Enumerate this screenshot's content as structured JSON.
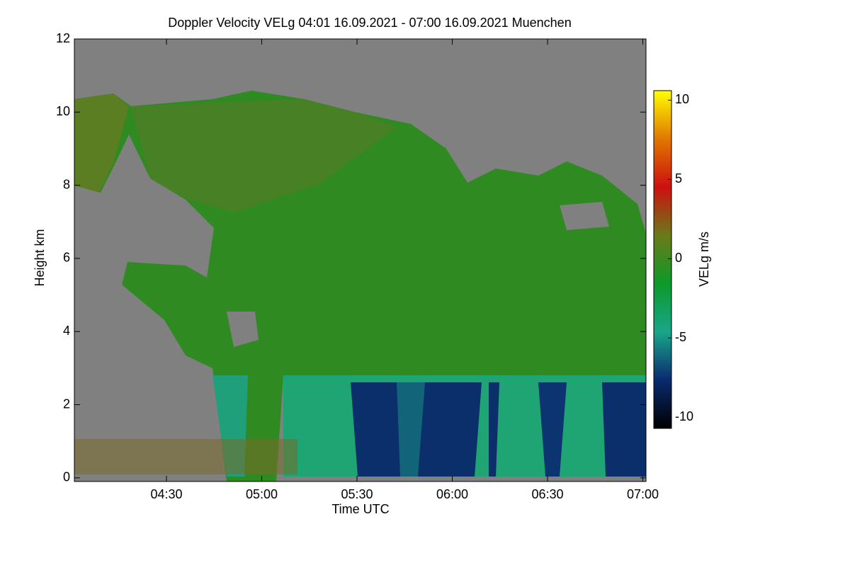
{
  "chart_data": {
    "type": "heatmap",
    "title": "Doppler Velocity VELg   04:01 16.09.2021 - 07:00 16.09.2021 Muenchen",
    "xlabel": "Time UTC",
    "ylabel": "Height km",
    "colorbar_label": "VELg m/s",
    "xlim": [
      241,
      421
    ],
    "xticks": [
      {
        "value": 270,
        "label": "04:30"
      },
      {
        "value": 300,
        "label": "05:00"
      },
      {
        "value": 330,
        "label": "05:30"
      },
      {
        "value": 360,
        "label": "06:00"
      },
      {
        "value": 390,
        "label": "06:30"
      },
      {
        "value": 420,
        "label": "07:00"
      }
    ],
    "ylim": [
      -0.1,
      12
    ],
    "yticks": [
      0,
      2,
      4,
      6,
      8,
      10,
      12
    ],
    "clim": [
      -10.7,
      10.6
    ],
    "cticks": [
      -10,
      -5,
      0,
      5,
      10
    ],
    "colormap": [
      "#000000",
      "#0a2a6e",
      "#1aa58a",
      "#0c9a2a",
      "#6b7a1a",
      "#cc1010",
      "#e07800",
      "#ffff00"
    ],
    "background": "#808080"
  }
}
